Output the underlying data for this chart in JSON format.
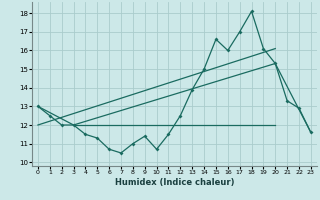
{
  "xlabel": "Humidex (Indice chaleur)",
  "ylabel": "",
  "xlim": [
    -0.5,
    23.5
  ],
  "ylim": [
    9.8,
    18.6
  ],
  "yticks": [
    10,
    11,
    12,
    13,
    14,
    15,
    16,
    17,
    18
  ],
  "xticks": [
    0,
    1,
    2,
    3,
    4,
    5,
    6,
    7,
    8,
    9,
    10,
    11,
    12,
    13,
    14,
    15,
    16,
    17,
    18,
    19,
    20,
    21,
    22,
    23
  ],
  "bg_color": "#cce8e8",
  "grid_color": "#aacccc",
  "line_color": "#1a6b60",
  "series1_x": [
    0,
    1,
    2,
    3,
    4,
    5,
    6,
    7,
    8,
    9,
    10,
    11,
    12,
    13,
    14,
    15,
    16,
    17,
    18,
    19,
    20,
    21,
    22,
    23
  ],
  "series1_y": [
    13.0,
    12.5,
    12.0,
    12.0,
    11.5,
    11.3,
    10.7,
    10.5,
    11.0,
    11.4,
    10.7,
    11.5,
    12.5,
    13.9,
    15.0,
    16.6,
    16.0,
    17.0,
    18.1,
    16.1,
    15.3,
    13.3,
    12.9,
    11.6
  ],
  "line2_x": [
    0,
    3,
    20,
    23
  ],
  "line2_y": [
    13.0,
    12.0,
    15.3,
    11.6
  ],
  "line3_x": [
    3,
    20
  ],
  "line3_y": [
    12.0,
    12.0
  ],
  "line4_x": [
    0,
    20
  ],
  "line4_y": [
    12.0,
    16.1
  ]
}
